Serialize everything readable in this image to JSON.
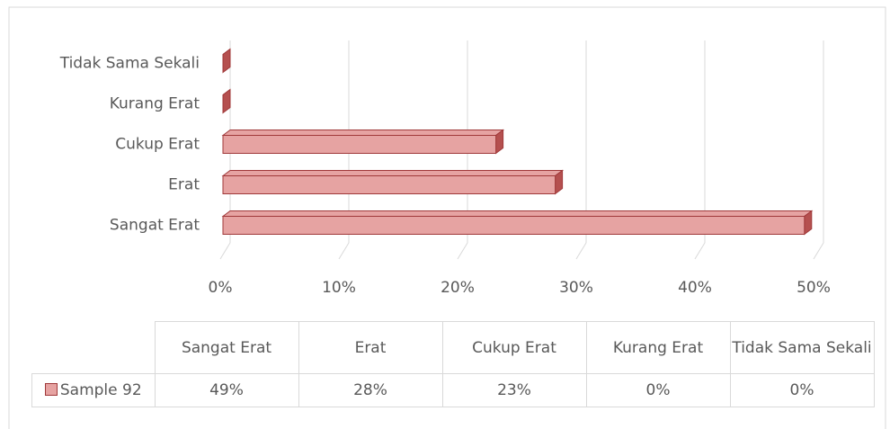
{
  "chart_data": {
    "type": "bar",
    "orientation": "horizontal",
    "categories": [
      "Sangat Erat",
      "Erat",
      "Cukup Erat",
      "Kurang Erat",
      "Tidak Sama Sekali"
    ],
    "series": [
      {
        "name": "Sample 92",
        "color": "#e6a3a2",
        "edge_color": "#a0393a",
        "values": [
          49,
          28,
          23,
          0,
          0
        ],
        "value_labels": [
          "49%",
          "28%",
          "23%",
          "0%",
          "0%"
        ]
      }
    ],
    "xlim": [
      0,
      50
    ],
    "xticks": [
      {
        "value": 0,
        "label": "0%"
      },
      {
        "value": 10,
        "label": "10%"
      },
      {
        "value": 20,
        "label": "20%"
      },
      {
        "value": 30,
        "label": "30%"
      },
      {
        "value": 40,
        "label": "40%"
      },
      {
        "value": 50,
        "label": "50%"
      }
    ],
    "grid": true
  }
}
